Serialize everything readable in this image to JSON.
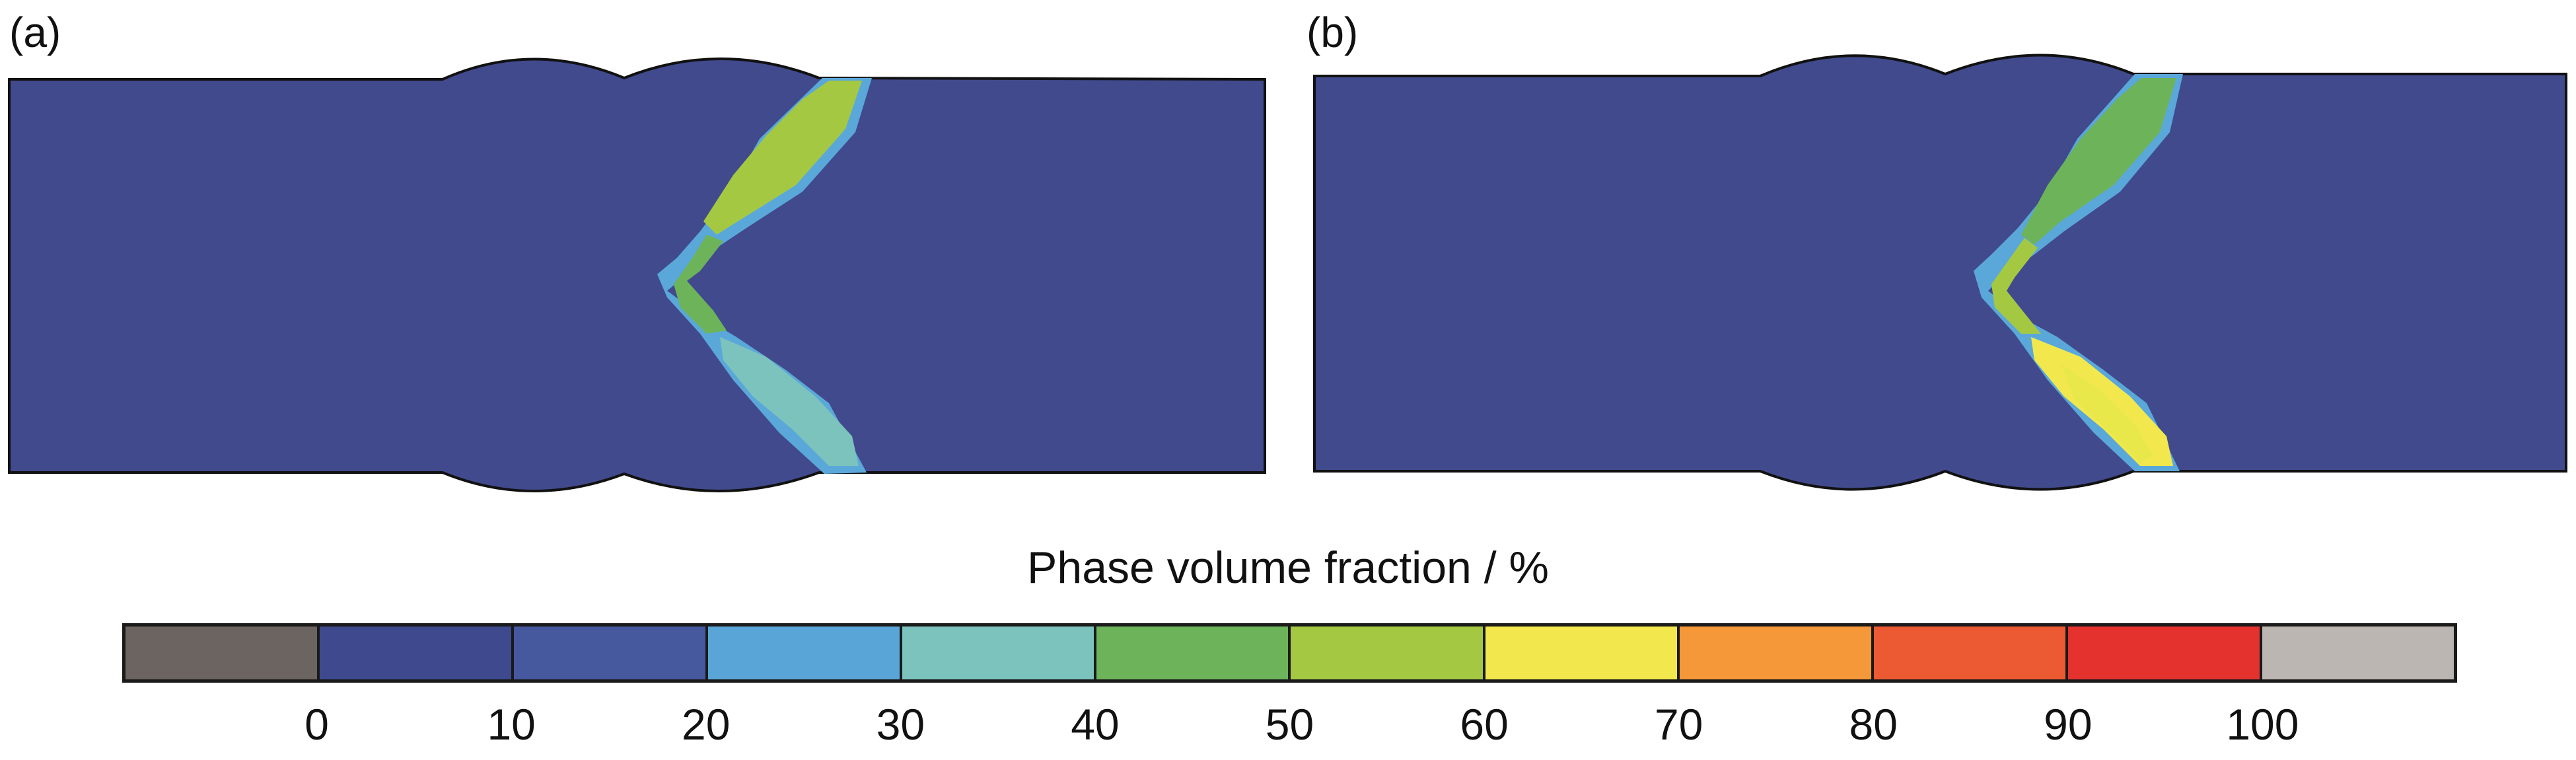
{
  "panels": [
    {
      "label": "(a)",
      "lower_fill_color": "#7cc3bd",
      "lower_inner_color": "#7cc3bd",
      "upper_fill_color": "#a5c843"
    },
    {
      "label": "(b)",
      "lower_fill_color": "#f2e84d",
      "lower_inner_color": "#e9e84a",
      "upper_fill_color": "#6db35a"
    }
  ],
  "legend": {
    "title": "Phase volume fraction / %",
    "colors": [
      "#6b6461",
      "#3f4a8e",
      "#46589e",
      "#59a5d7",
      "#7cc3bd",
      "#6db35a",
      "#a5c843",
      "#f2e84d",
      "#f5983a",
      "#ec5a33",
      "#e4332f",
      "#bcb6b3"
    ],
    "ticks": [
      "0",
      "10",
      "20",
      "30",
      "40",
      "50",
      "60",
      "70",
      "80",
      "90",
      "100"
    ]
  },
  "colors": {
    "matrix": "#414a8c",
    "halo": "#5aa8da",
    "outline": "#111111"
  }
}
